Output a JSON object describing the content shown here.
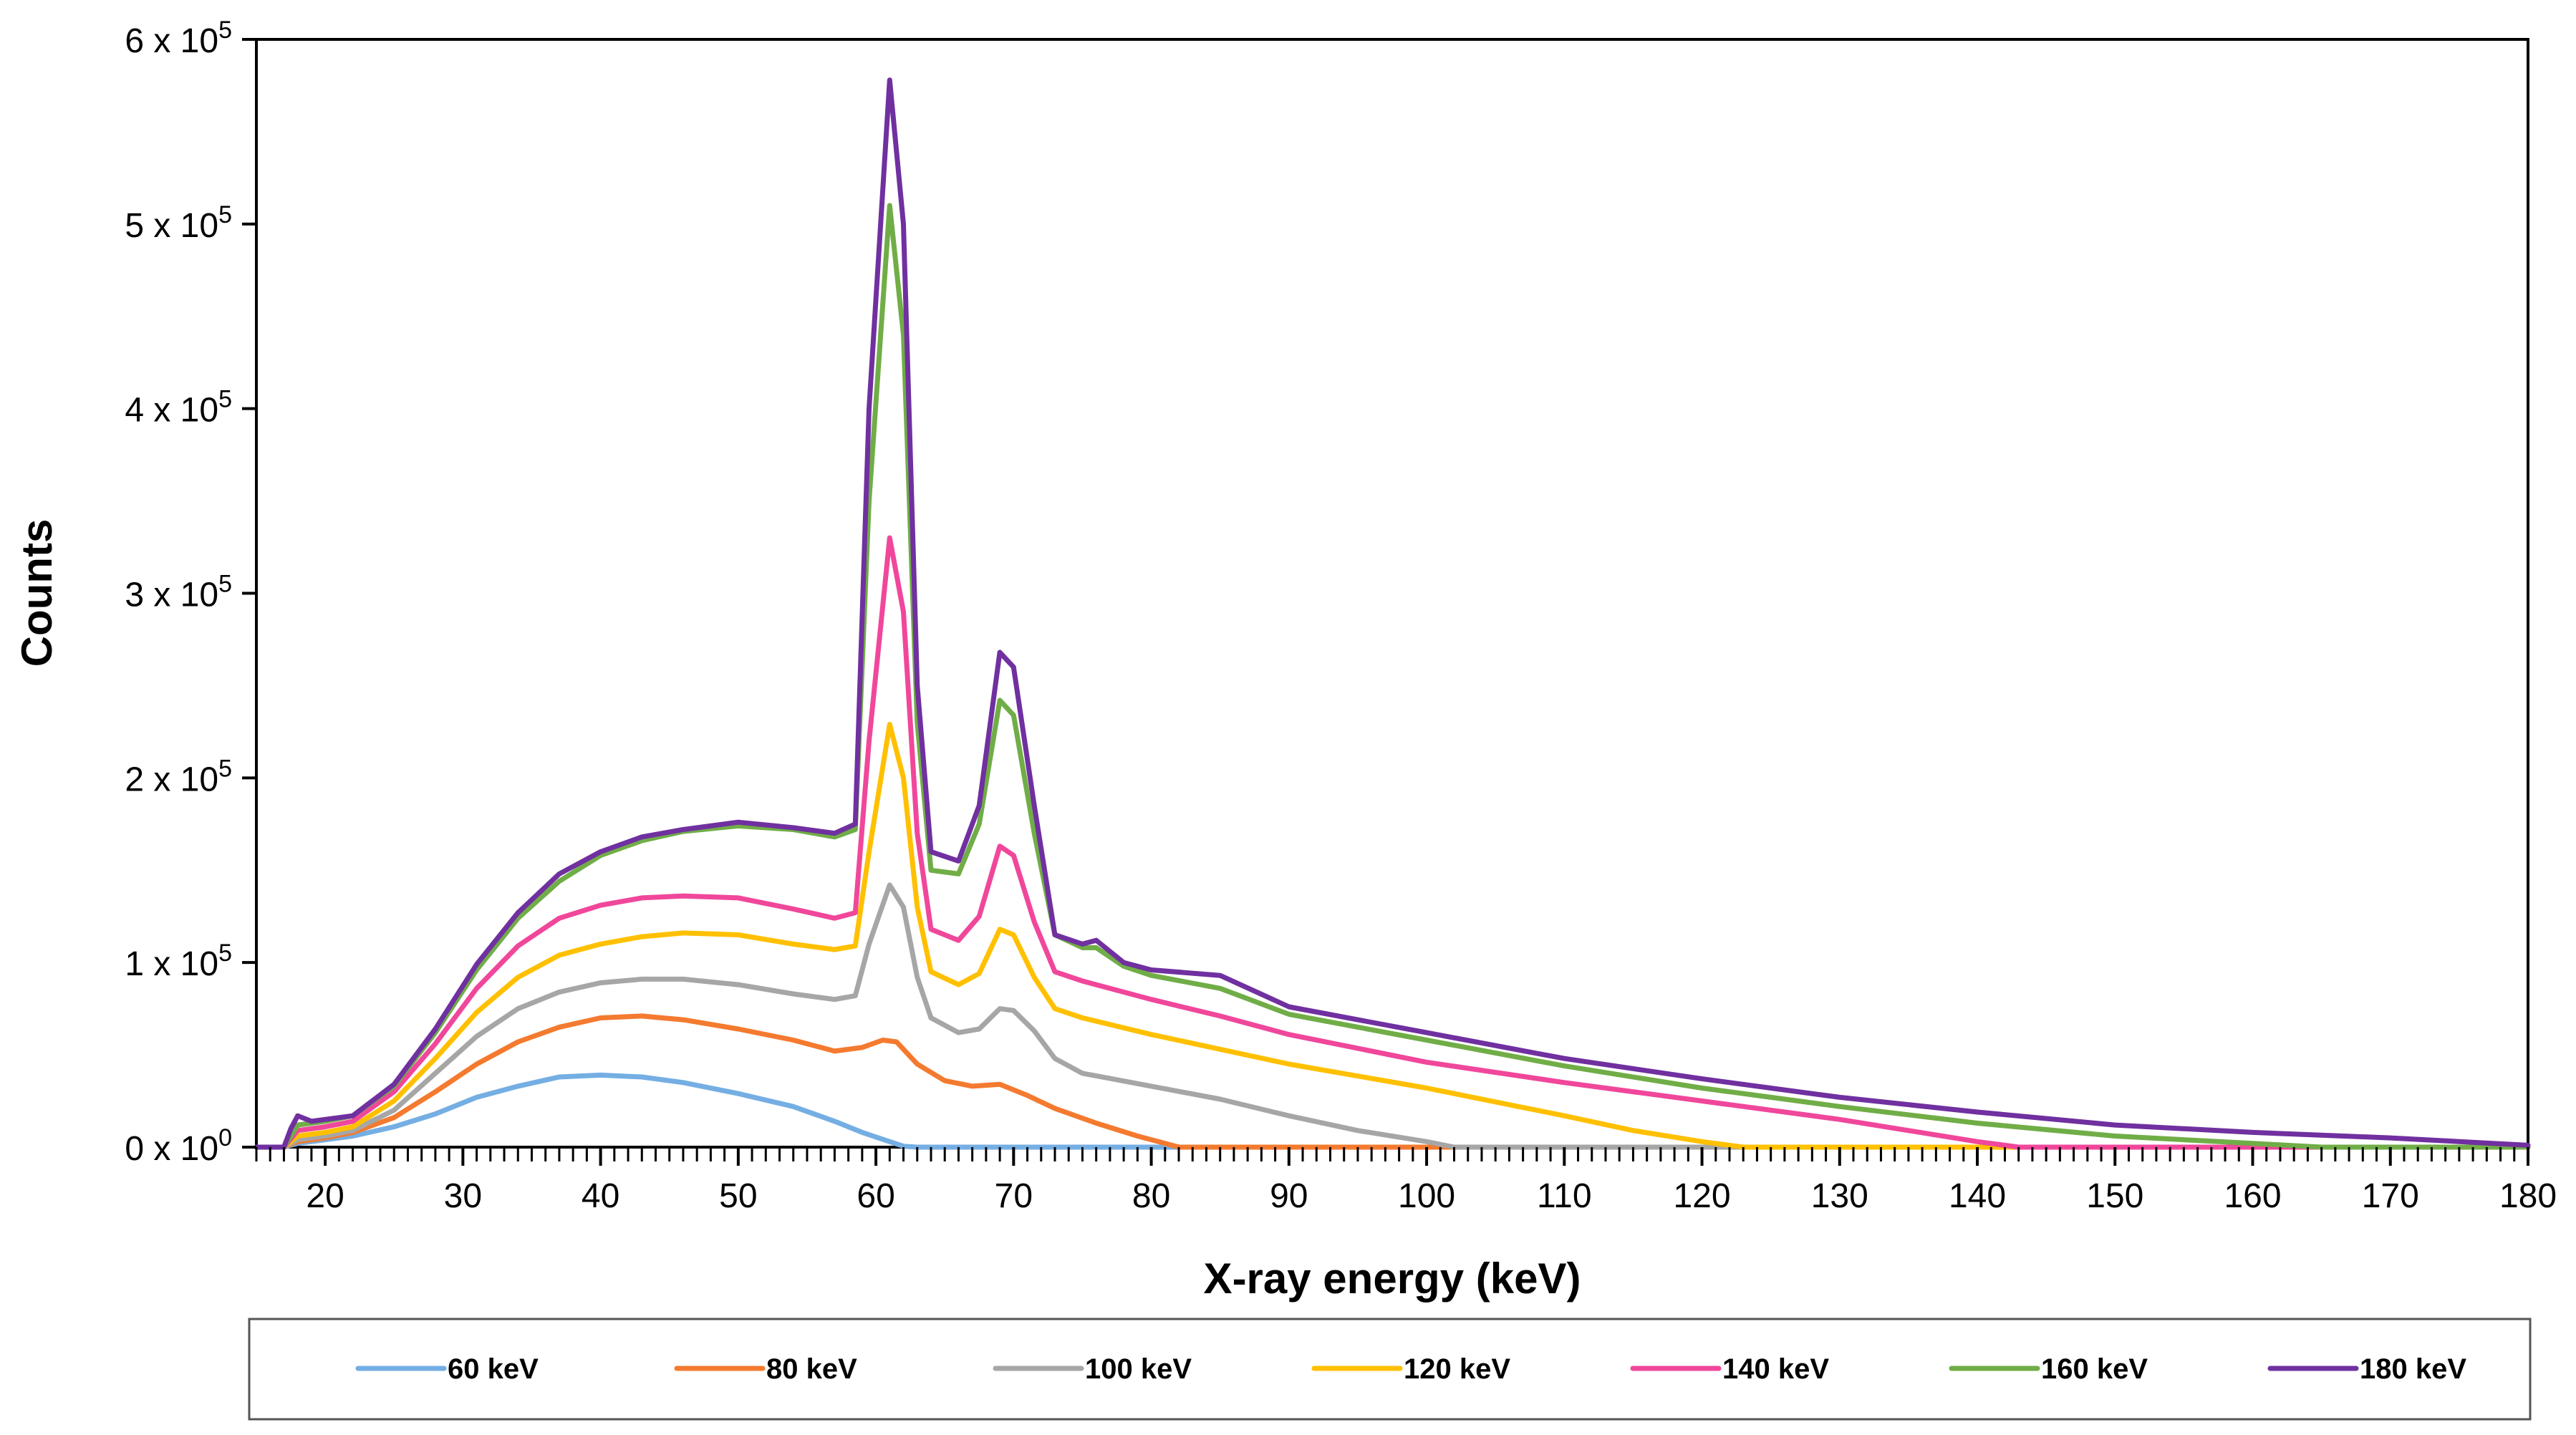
{
  "chart_data": {
    "type": "line",
    "title": "",
    "xlabel": "X-ray energy (keV)",
    "ylabel": "Counts",
    "xlim": [
      15,
      180
    ],
    "ylim": [
      0,
      600000
    ],
    "x_ticks": [
      20,
      30,
      40,
      50,
      60,
      70,
      80,
      90,
      100,
      110,
      120,
      130,
      140,
      150,
      160,
      170,
      180
    ],
    "x_tick_labels": [
      "20",
      "30",
      "40",
      "50",
      "60",
      "70",
      "80",
      "90",
      "100",
      "110",
      "120",
      "130",
      "140",
      "150",
      "160",
      "170",
      "180"
    ],
    "y_ticks": [
      0,
      100000,
      200000,
      300000,
      400000,
      500000,
      600000
    ],
    "y_tick_mantissa": [
      "0",
      "1",
      "2",
      "3",
      "4",
      "5",
      "6"
    ],
    "y_tick_times": "x 10",
    "y_tick_exponent": [
      "0",
      "5",
      "5",
      "5",
      "5",
      "5",
      "5"
    ],
    "legend_position": "bottom",
    "grid": false,
    "series": [
      {
        "name": "60 keV",
        "color": "#74aee3",
        "points": [
          [
            15,
            0
          ],
          [
            17,
            0
          ],
          [
            18,
            2000
          ],
          [
            20,
            4000
          ],
          [
            22,
            6000
          ],
          [
            25,
            11000
          ],
          [
            28,
            18000
          ],
          [
            31,
            27000
          ],
          [
            34,
            33000
          ],
          [
            37,
            38000
          ],
          [
            40,
            39000
          ],
          [
            43,
            38000
          ],
          [
            46,
            35000
          ],
          [
            50,
            29000
          ],
          [
            54,
            22000
          ],
          [
            57,
            14000
          ],
          [
            59,
            8000
          ],
          [
            61,
            3000
          ],
          [
            62,
            500
          ],
          [
            63,
            0
          ],
          [
            180,
            0
          ]
        ]
      },
      {
        "name": "80 keV",
        "color": "#f47a2f",
        "points": [
          [
            15,
            0
          ],
          [
            17,
            0
          ],
          [
            18,
            3000
          ],
          [
            20,
            5000
          ],
          [
            22,
            8000
          ],
          [
            25,
            16000
          ],
          [
            28,
            30000
          ],
          [
            31,
            45000
          ],
          [
            34,
            57000
          ],
          [
            37,
            65000
          ],
          [
            40,
            70000
          ],
          [
            43,
            71000
          ],
          [
            46,
            69000
          ],
          [
            50,
            64000
          ],
          [
            54,
            58000
          ],
          [
            57,
            52000
          ],
          [
            59,
            54000
          ],
          [
            60.5,
            58000
          ],
          [
            61.5,
            57000
          ],
          [
            63,
            45000
          ],
          [
            65,
            36000
          ],
          [
            67,
            33000
          ],
          [
            69,
            34000
          ],
          [
            71,
            28000
          ],
          [
            73,
            21000
          ],
          [
            76,
            13000
          ],
          [
            79,
            6000
          ],
          [
            81,
            2000
          ],
          [
            82,
            0
          ],
          [
            180,
            0
          ]
        ]
      },
      {
        "name": "100 keV",
        "color": "#a6a6a6",
        "points": [
          [
            15,
            0
          ],
          [
            17,
            0
          ],
          [
            18,
            4000
          ],
          [
            20,
            6000
          ],
          [
            22,
            9000
          ],
          [
            25,
            20000
          ],
          [
            28,
            40000
          ],
          [
            31,
            60000
          ],
          [
            34,
            75000
          ],
          [
            37,
            84000
          ],
          [
            40,
            89000
          ],
          [
            43,
            91000
          ],
          [
            46,
            91000
          ],
          [
            50,
            88000
          ],
          [
            54,
            83000
          ],
          [
            57,
            80000
          ],
          [
            58.5,
            82000
          ],
          [
            59.5,
            110000
          ],
          [
            61,
            142000
          ],
          [
            62,
            130000
          ],
          [
            63,
            92000
          ],
          [
            64,
            70000
          ],
          [
            66,
            62000
          ],
          [
            67.5,
            64000
          ],
          [
            69,
            75000
          ],
          [
            70,
            74000
          ],
          [
            71.5,
            63000
          ],
          [
            73,
            48000
          ],
          [
            75,
            40000
          ],
          [
            80,
            33000
          ],
          [
            85,
            26000
          ],
          [
            90,
            17000
          ],
          [
            95,
            9000
          ],
          [
            100,
            3000
          ],
          [
            102,
            0
          ],
          [
            180,
            0
          ]
        ]
      },
      {
        "name": "120 keV",
        "color": "#ffc000",
        "points": [
          [
            15,
            0
          ],
          [
            17,
            0
          ],
          [
            18,
            6000
          ],
          [
            20,
            8000
          ],
          [
            22,
            11000
          ],
          [
            25,
            25000
          ],
          [
            28,
            48000
          ],
          [
            31,
            73000
          ],
          [
            34,
            92000
          ],
          [
            37,
            104000
          ],
          [
            40,
            110000
          ],
          [
            43,
            114000
          ],
          [
            46,
            116000
          ],
          [
            50,
            115000
          ],
          [
            54,
            110000
          ],
          [
            57,
            107000
          ],
          [
            58.5,
            109000
          ],
          [
            59.5,
            160000
          ],
          [
            61,
            229000
          ],
          [
            62,
            200000
          ],
          [
            63,
            130000
          ],
          [
            64,
            95000
          ],
          [
            66,
            88000
          ],
          [
            67.5,
            94000
          ],
          [
            69,
            118000
          ],
          [
            70,
            115000
          ],
          [
            71.5,
            92000
          ],
          [
            73,
            75000
          ],
          [
            75,
            70000
          ],
          [
            80,
            61000
          ],
          [
            85,
            53000
          ],
          [
            90,
            45000
          ],
          [
            100,
            32000
          ],
          [
            110,
            17000
          ],
          [
            115,
            9000
          ],
          [
            120,
            3000
          ],
          [
            123,
            0
          ],
          [
            180,
            0
          ]
        ]
      },
      {
        "name": "140 keV",
        "color": "#f0479b",
        "points": [
          [
            15,
            0
          ],
          [
            17,
            0
          ],
          [
            18,
            9000
          ],
          [
            20,
            11000
          ],
          [
            22,
            14000
          ],
          [
            25,
            30000
          ],
          [
            28,
            56000
          ],
          [
            31,
            86000
          ],
          [
            34,
            109000
          ],
          [
            37,
            124000
          ],
          [
            40,
            131000
          ],
          [
            43,
            135000
          ],
          [
            46,
            136000
          ],
          [
            50,
            135000
          ],
          [
            54,
            129000
          ],
          [
            57,
            124000
          ],
          [
            58.5,
            127000
          ],
          [
            59.5,
            220000
          ],
          [
            61,
            330000
          ],
          [
            62,
            290000
          ],
          [
            63,
            170000
          ],
          [
            64,
            118000
          ],
          [
            66,
            112000
          ],
          [
            67.5,
            125000
          ],
          [
            69,
            163000
          ],
          [
            70,
            158000
          ],
          [
            71.5,
            122000
          ],
          [
            73,
            95000
          ],
          [
            75,
            90000
          ],
          [
            80,
            80000
          ],
          [
            85,
            71000
          ],
          [
            90,
            61000
          ],
          [
            100,
            46000
          ],
          [
            110,
            35000
          ],
          [
            120,
            25000
          ],
          [
            130,
            15000
          ],
          [
            135,
            9000
          ],
          [
            140,
            3000
          ],
          [
            143,
            0
          ],
          [
            180,
            0
          ]
        ]
      },
      {
        "name": "160 keV",
        "color": "#70ad47",
        "points": [
          [
            15,
            0
          ],
          [
            17,
            0
          ],
          [
            18,
            12000
          ],
          [
            20,
            14000
          ],
          [
            22,
            17000
          ],
          [
            25,
            33000
          ],
          [
            28,
            62000
          ],
          [
            31,
            96000
          ],
          [
            34,
            124000
          ],
          [
            37,
            144000
          ],
          [
            40,
            158000
          ],
          [
            43,
            166000
          ],
          [
            46,
            171000
          ],
          [
            50,
            174000
          ],
          [
            54,
            172000
          ],
          [
            57,
            168000
          ],
          [
            58.5,
            172000
          ],
          [
            59.5,
            350000
          ],
          [
            61,
            510000
          ],
          [
            62,
            440000
          ],
          [
            63,
            230000
          ],
          [
            64,
            150000
          ],
          [
            66,
            148000
          ],
          [
            67.5,
            175000
          ],
          [
            69,
            242000
          ],
          [
            70,
            234000
          ],
          [
            71.5,
            170000
          ],
          [
            73,
            115000
          ],
          [
            75,
            108000
          ],
          [
            76,
            108000
          ],
          [
            78,
            98000
          ],
          [
            80,
            93000
          ],
          [
            85,
            86000
          ],
          [
            90,
            72000
          ],
          [
            100,
            58000
          ],
          [
            110,
            44000
          ],
          [
            120,
            32000
          ],
          [
            130,
            22000
          ],
          [
            140,
            13000
          ],
          [
            150,
            6000
          ],
          [
            160,
            2000
          ],
          [
            165,
            0
          ],
          [
            180,
            0
          ]
        ]
      },
      {
        "name": "180 keV",
        "color": "#7030a0",
        "points": [
          [
            15,
            0
          ],
          [
            17,
            0
          ],
          [
            17.5,
            10000
          ],
          [
            18,
            17000
          ],
          [
            19,
            14000
          ],
          [
            20,
            15000
          ],
          [
            22,
            17000
          ],
          [
            25,
            34000
          ],
          [
            28,
            64000
          ],
          [
            31,
            99000
          ],
          [
            34,
            127000
          ],
          [
            37,
            148000
          ],
          [
            40,
            160000
          ],
          [
            43,
            168000
          ],
          [
            46,
            172000
          ],
          [
            50,
            176000
          ],
          [
            54,
            173000
          ],
          [
            57,
            170000
          ],
          [
            58.5,
            175000
          ],
          [
            59.5,
            400000
          ],
          [
            61,
            578000
          ],
          [
            62,
            500000
          ],
          [
            63,
            250000
          ],
          [
            64,
            160000
          ],
          [
            66,
            155000
          ],
          [
            67.5,
            185000
          ],
          [
            69,
            268000
          ],
          [
            70,
            260000
          ],
          [
            71.5,
            185000
          ],
          [
            73,
            115000
          ],
          [
            75,
            110000
          ],
          [
            76,
            112000
          ],
          [
            78,
            100000
          ],
          [
            80,
            96000
          ],
          [
            85,
            93000
          ],
          [
            90,
            76000
          ],
          [
            100,
            62000
          ],
          [
            110,
            48000
          ],
          [
            120,
            37000
          ],
          [
            130,
            27000
          ],
          [
            140,
            19000
          ],
          [
            150,
            12000
          ],
          [
            160,
            8000
          ],
          [
            170,
            5000
          ],
          [
            180,
            1000
          ]
        ]
      }
    ]
  }
}
